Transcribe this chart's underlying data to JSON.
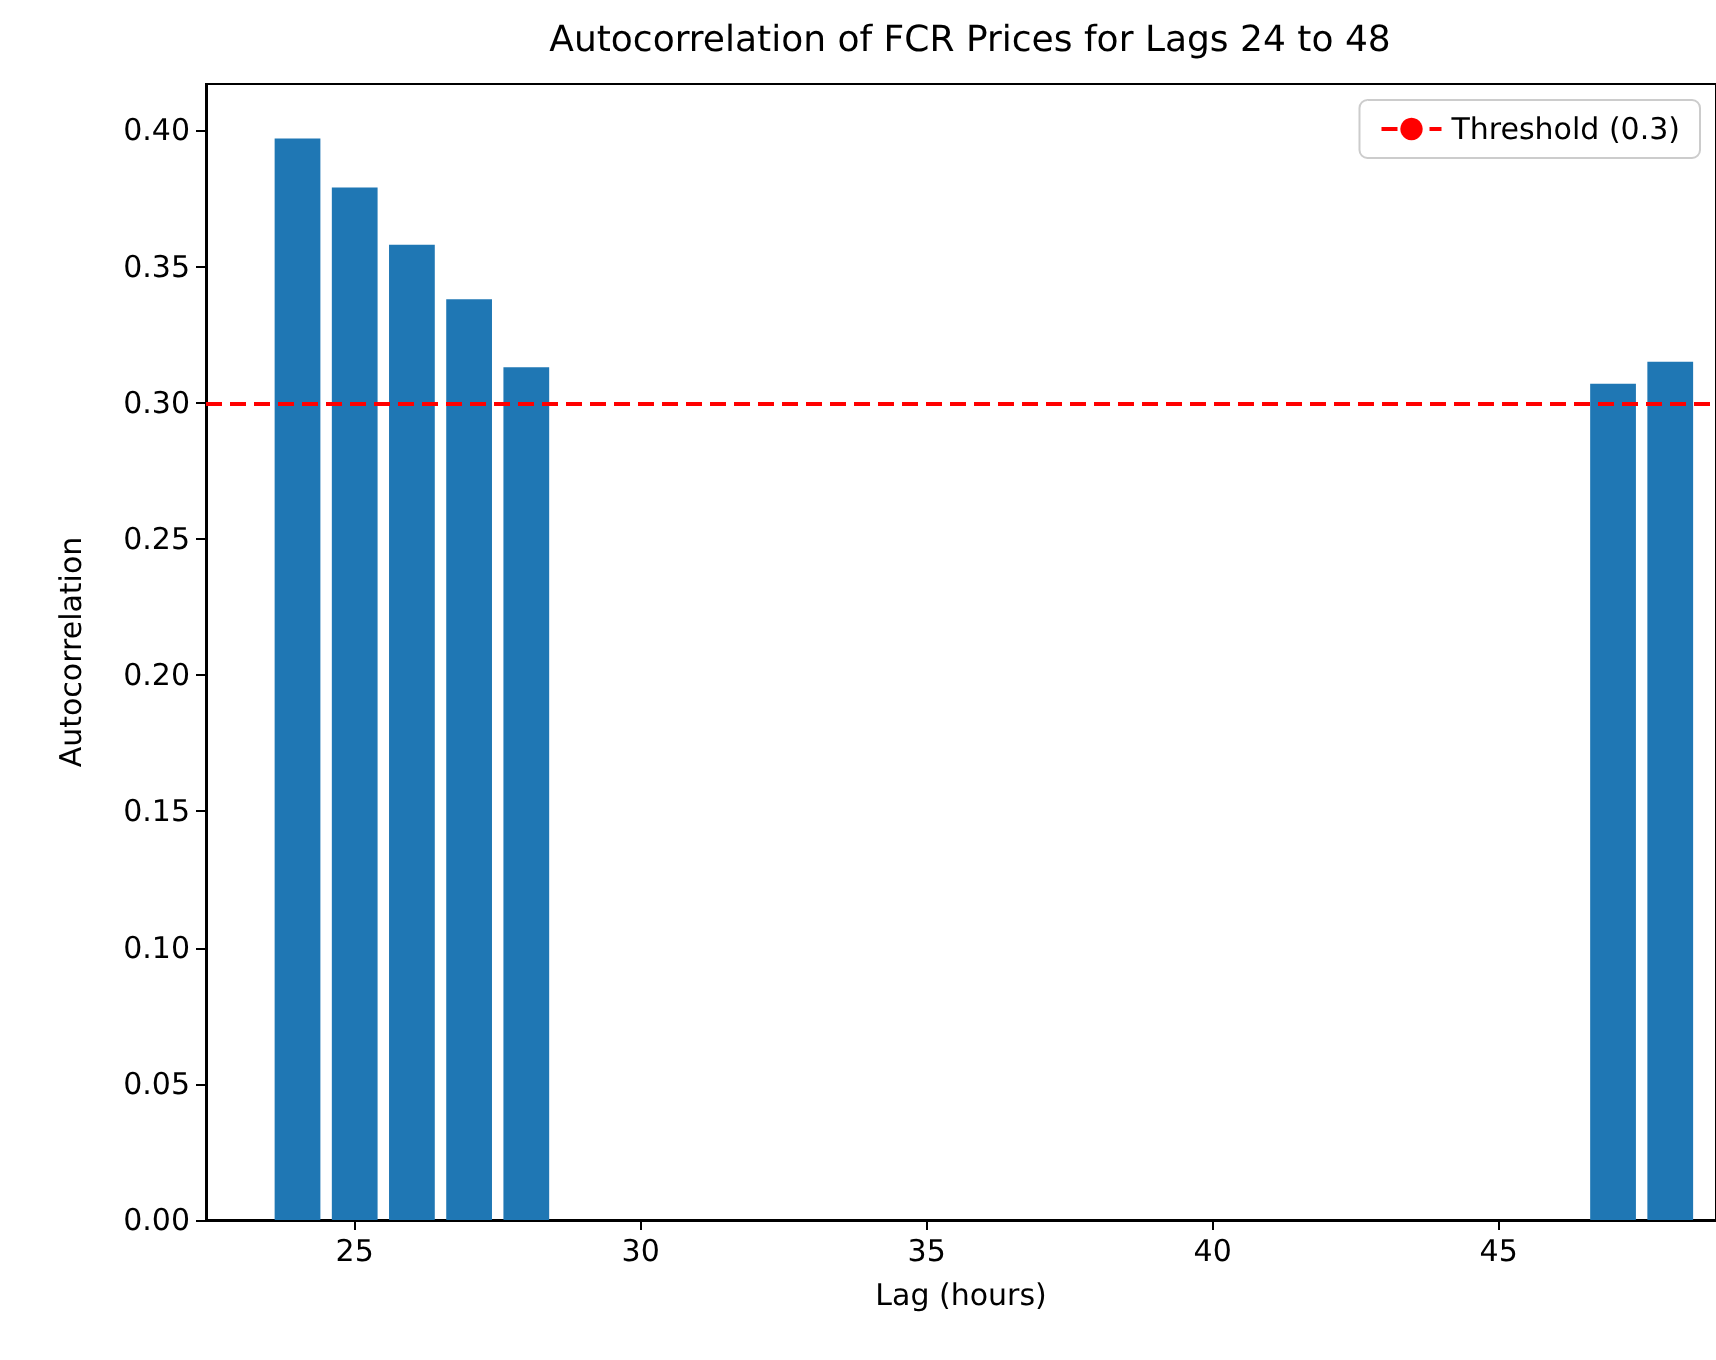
{
  "chart_data": {
    "type": "bar",
    "title": "Autocorrelation of FCR Prices for Lags 24 to 48",
    "xlabel": "Lag (hours)",
    "ylabel": "Autocorrelation",
    "x": [
      24,
      25,
      26,
      27,
      28,
      47,
      48
    ],
    "values": [
      0.397,
      0.379,
      0.358,
      0.338,
      0.313,
      0.307,
      0.315
    ],
    "color": "#1f77b4",
    "xlim": [
      22.4,
      48.8
    ],
    "xticks": [
      25,
      30,
      35,
      40,
      45
    ],
    "ylim": [
      0,
      0.417
    ],
    "yticks": [
      {
        "value": 0,
        "label": "0.00"
      },
      {
        "value": 0.05,
        "label": "0.05"
      },
      {
        "value": 0.1,
        "label": "0.10"
      },
      {
        "value": 0.15,
        "label": "0.15"
      },
      {
        "value": 0.2,
        "label": "0.20"
      },
      {
        "value": 0.25,
        "label": "0.25"
      },
      {
        "value": 0.3,
        "label": "0.30"
      },
      {
        "value": 0.35,
        "label": "0.35"
      },
      {
        "value": 0.4,
        "label": "0.40"
      }
    ],
    "ref_lines": [
      {
        "axis": "y",
        "value": 0.3,
        "label": "Threshold (0.3)",
        "color": "#ff0000",
        "line_style": "dashed"
      }
    ],
    "legend": "top right",
    "grid": false
  }
}
